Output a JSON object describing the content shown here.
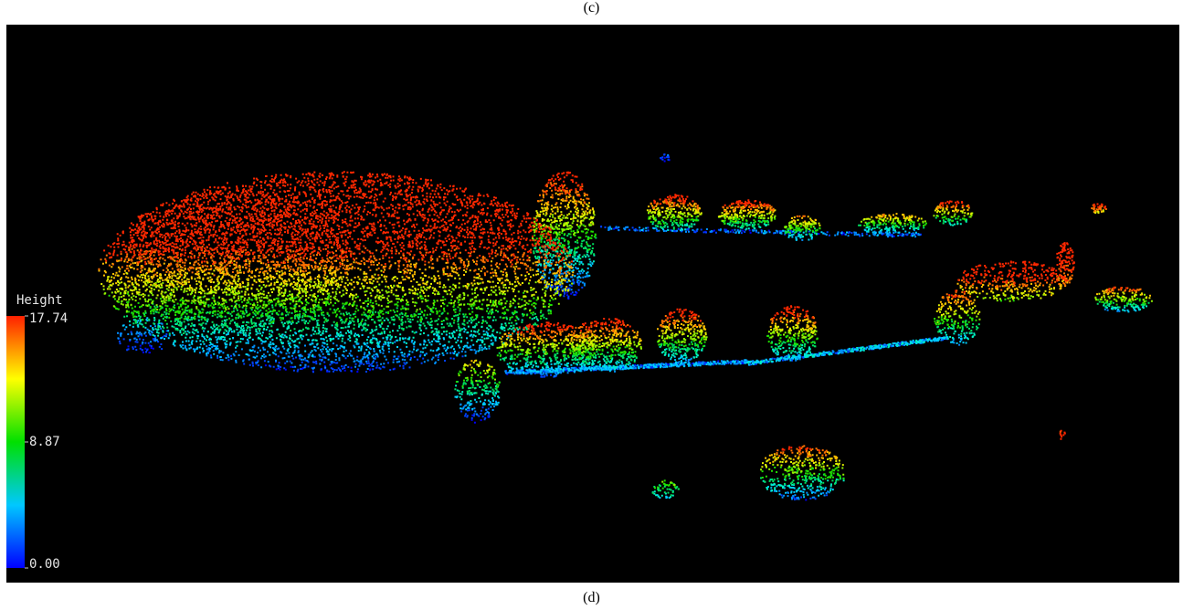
{
  "caption_top": "(c)",
  "caption_bottom": "(d)",
  "colorbar": {
    "title": "Height",
    "range": [
      0,
      17.74
    ],
    "ticks": [
      17.74,
      8.87,
      {
        "value": 0,
        "label": "0.00"
      }
    ]
  }
}
